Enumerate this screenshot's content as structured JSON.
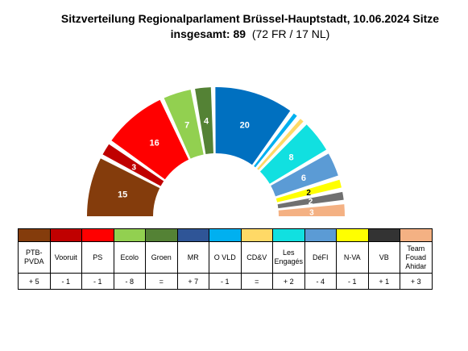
{
  "title": {
    "line1": "Sitzverteilung Regionalparlament Brüssel-Hauptstadt, 10.06.2024 Sitze",
    "line2": "insgesamt: 89",
    "line2_detail": "(72 FR / 17 NL)"
  },
  "chart_data": {
    "type": "hemicycle",
    "total_seats": 89,
    "parties": [
      {
        "name": "PTB-PVDA",
        "seats": 15,
        "change": "+ 5",
        "color": "#843C0C",
        "label": "15",
        "text_color": "#ffffff"
      },
      {
        "name": "Vooruit",
        "seats": 3,
        "change": "- 1",
        "color": "#C00000",
        "label": "3",
        "text_color": "#ffffff"
      },
      {
        "name": "PS",
        "seats": 16,
        "change": "- 1",
        "color": "#FF0000",
        "label": "16",
        "text_color": "#ffffff"
      },
      {
        "name": "Ecolo",
        "seats": 7,
        "change": "- 8",
        "color": "#92D050",
        "label": "7",
        "text_color": "#ffffff"
      },
      {
        "name": "Groen",
        "seats": 4,
        "change": "=",
        "color": "#548235",
        "label": "4",
        "text_color": "#ffffff"
      },
      {
        "name": "MR",
        "seats": 20,
        "change": "+ 7",
        "color": "#0070C0",
        "label": "20",
        "text_color": "#ffffff"
      },
      {
        "name": "O VLD",
        "seats": 1,
        "change": "- 1",
        "color": "#00B0F0",
        "label": "",
        "text_color": "#ffffff"
      },
      {
        "name": "CD&V",
        "seats": 1,
        "change": "=",
        "color": "#FFD966",
        "label": "",
        "text_color": "#ffffff"
      },
      {
        "name": "Les Engagés",
        "seats": 8,
        "change": "+ 2",
        "color": "#11E0E0",
        "label": "8",
        "text_color": "#ffffff"
      },
      {
        "name": "DéFI",
        "seats": 6,
        "change": "- 4",
        "color": "#5B9BD5",
        "label": "6",
        "text_color": "#ffffff"
      },
      {
        "name": "N-VA",
        "seats": 2,
        "change": "- 1",
        "color": "#FFFF00",
        "label": "2",
        "text_color": "#000000"
      },
      {
        "name": "VB",
        "seats": 2,
        "change": "+ 1",
        "color": "#707070",
        "label": "2",
        "text_color": "#ffffff"
      },
      {
        "name": "Team Fouad Ahidar",
        "seats": 3,
        "change": "+ 3",
        "color": "#F4B183",
        "label": "3",
        "text_color": "#ffffff"
      }
    ],
    "legend_swatch_colors": [
      "#843C0C",
      "#C00000",
      "#FF0000",
      "#92D050",
      "#548235",
      "#2F5597",
      "#00B0F0",
      "#FFD966",
      "#11E0E0",
      "#5B9BD5",
      "#FFFF00",
      "#333333",
      "#F4B183"
    ],
    "legend_placement": "bottom"
  }
}
